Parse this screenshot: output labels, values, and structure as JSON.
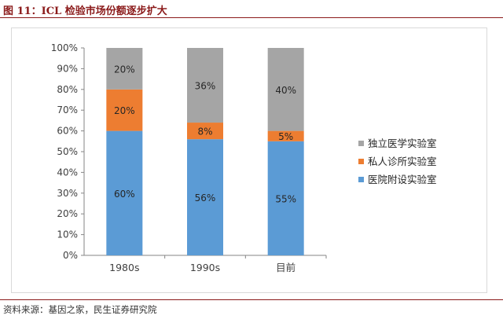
{
  "figure_title": "图 11：ICL 检验市场份额逐步扩大",
  "source_text": "资料来源：基因之家，民生证券研究院",
  "colors": {
    "title": "#8b1a1a",
    "hospital": "#5b9bd5",
    "private_clinic": "#ed7d31",
    "independent": "#a5a5a5"
  },
  "chart_data": {
    "type": "bar",
    "stacked": true,
    "categories": [
      "1980s",
      "1990s",
      "目前"
    ],
    "series": [
      {
        "name": "医院附设实验室",
        "values": [
          60,
          56,
          55
        ],
        "labels": [
          "60%",
          "56%",
          "55%"
        ],
        "color": "#5b9bd5"
      },
      {
        "name": "私人诊所实验室",
        "values": [
          20,
          8,
          5
        ],
        "labels": [
          "20%",
          "8%",
          "5%"
        ],
        "color": "#ed7d31"
      },
      {
        "name": "独立医学实验室",
        "values": [
          20,
          36,
          40
        ],
        "labels": [
          "20%",
          "36%",
          "40%"
        ],
        "color": "#a5a5a5"
      }
    ],
    "yticks": [
      "0%",
      "10%",
      "20%",
      "30%",
      "40%",
      "50%",
      "60%",
      "70%",
      "80%",
      "90%",
      "100%"
    ],
    "ylim": [
      0,
      100
    ],
    "legend_order": [
      "独立医学实验室",
      "私人诊所实验室",
      "医院附设实验室"
    ],
    "legend_position": "right",
    "grid": false
  }
}
